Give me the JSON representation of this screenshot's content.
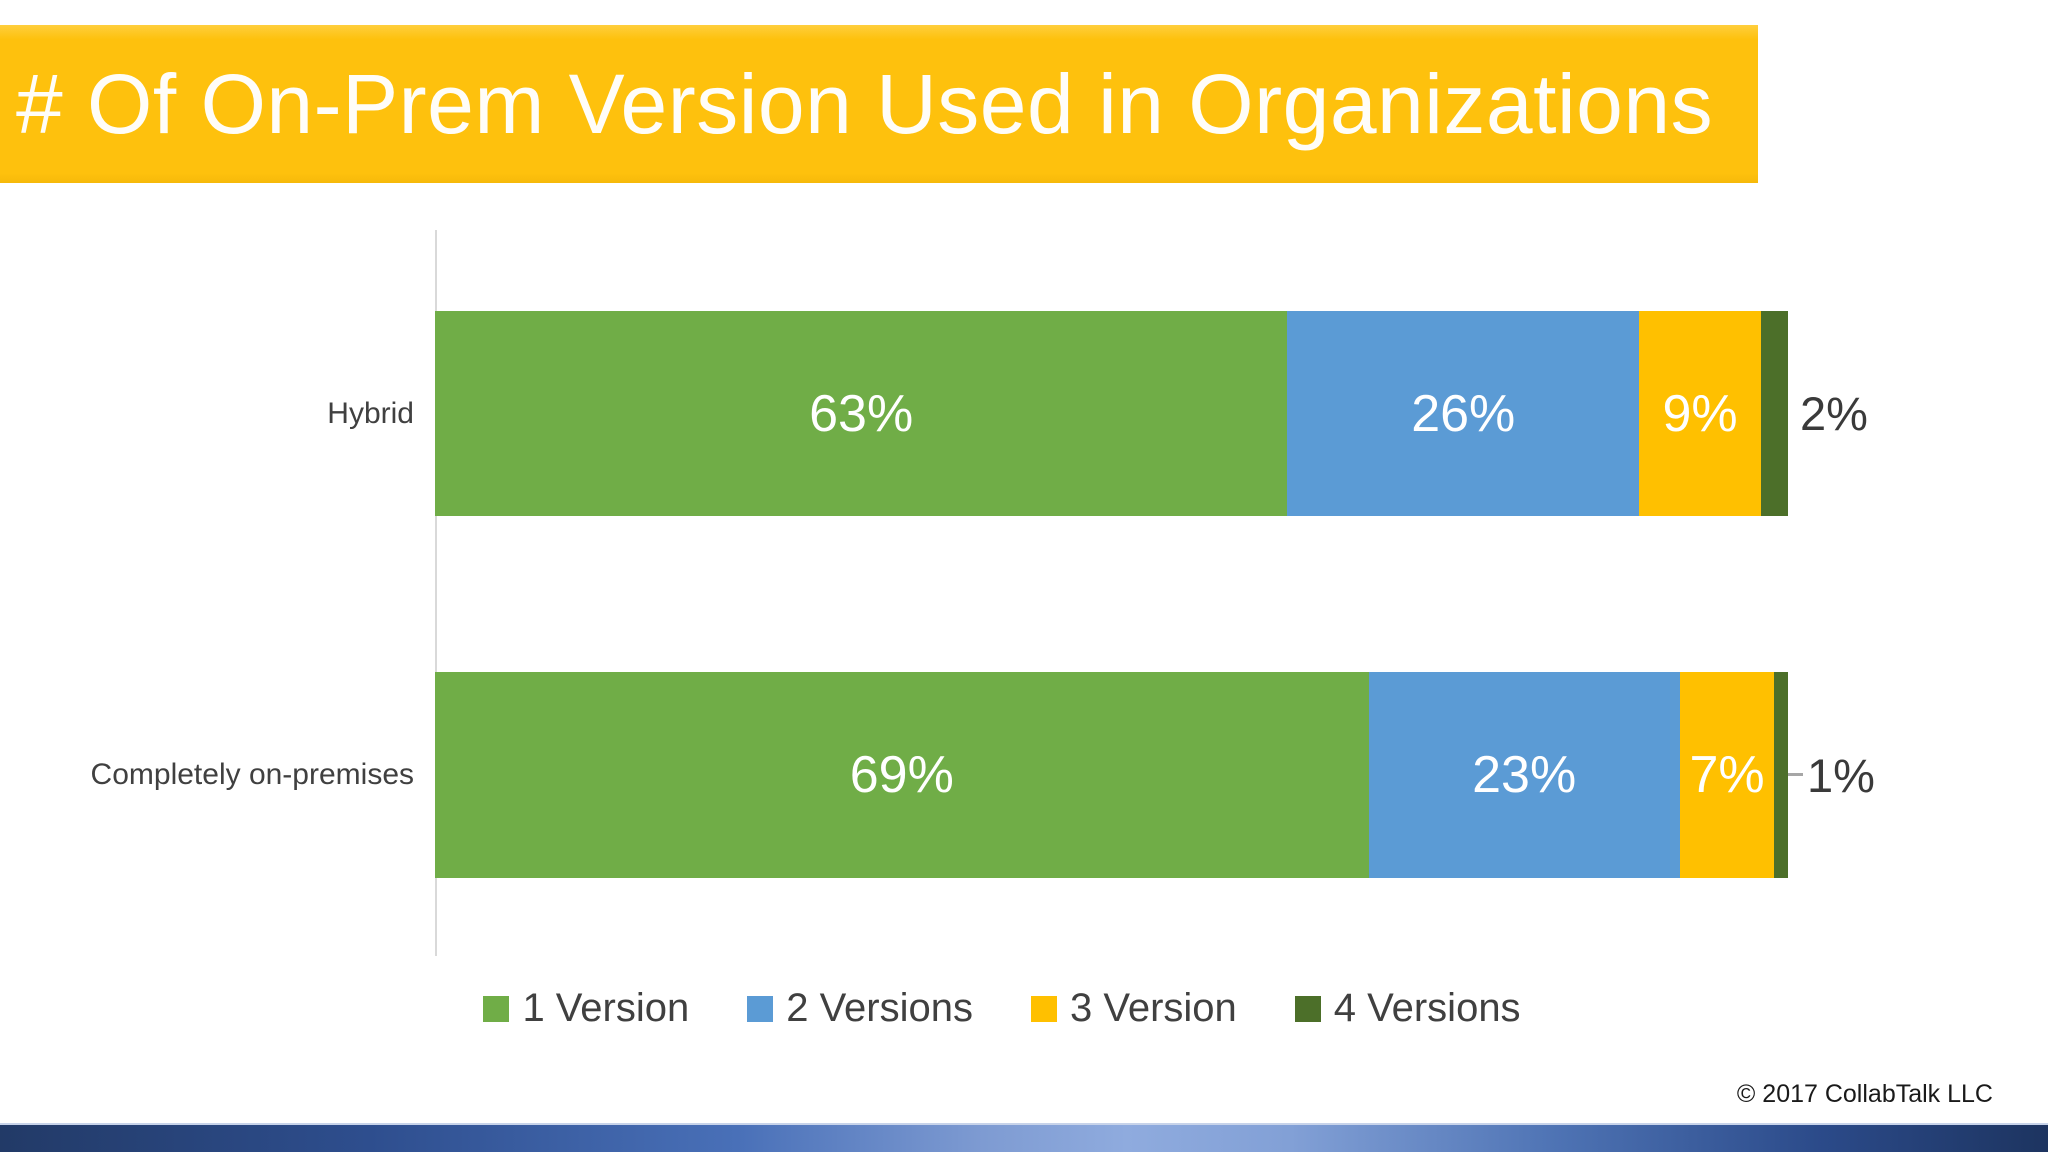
{
  "title": "# Of On-Prem Version Used in Organizations",
  "footer": {
    "copyright": "© 2017 CollabTalk LLC"
  },
  "colors": {
    "title_banner": "#FEC10D",
    "title_text": "#FFFFFF",
    "category_label": "#404040",
    "inside_data_label": "#FFFFFF",
    "outside_data_label": "#3A3A3A",
    "axis_line": "#D9D9D9",
    "leader_line": "#A6A6A6",
    "footer_bar_dark": "#1D3460",
    "footer_bar_mid": "#4B74BC",
    "footer_bar_light": "#8FABDE"
  },
  "chart_data": {
    "type": "bar",
    "orientation": "horizontal",
    "stacked": true,
    "title": "# Of On-Prem Version Used in Organizations",
    "xlabel": "",
    "ylabel": "",
    "xlim": [
      0,
      100
    ],
    "grid": false,
    "legend_position": "bottom",
    "categories": [
      "Hybrid",
      "Completely on-premises"
    ],
    "series": [
      {
        "name": "1 Version",
        "color": "#70AD47",
        "values": [
          63,
          69
        ]
      },
      {
        "name": "2 Versions",
        "color": "#5B9BD5",
        "values": [
          26,
          23
        ]
      },
      {
        "name": "3 Version",
        "color": "#FFC000",
        "values": [
          9,
          7
        ]
      },
      {
        "name": "4 Versions",
        "color": "#4C6F29",
        "values": [
          2,
          1
        ]
      }
    ],
    "data_labels": [
      [
        "63%",
        "26%",
        "9%",
        "2%"
      ],
      [
        "69%",
        "23%",
        "7%",
        "1%"
      ]
    ]
  }
}
